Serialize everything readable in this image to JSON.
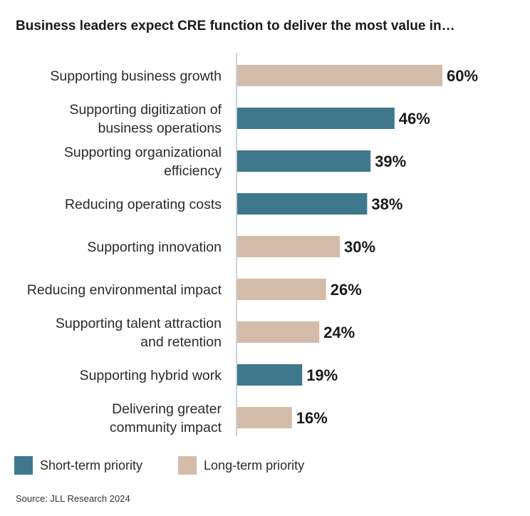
{
  "chart_data": {
    "type": "bar",
    "orientation": "horizontal",
    "title": "Business leaders expect CRE function to deliver the most value in…",
    "categories": [
      [
        "Supporting business growth"
      ],
      [
        "Supporting digitization of",
        "business operations"
      ],
      [
        "Supporting organizational",
        "efficiency"
      ],
      [
        "Reducing operating costs"
      ],
      [
        "Supporting innovation"
      ],
      [
        "Reducing environmental impact"
      ],
      [
        "Supporting talent attraction",
        "and retention"
      ],
      [
        "Supporting hybrid work"
      ],
      [
        "Delivering greater",
        "community impact"
      ]
    ],
    "values": [
      60,
      46,
      39,
      38,
      30,
      26,
      24,
      19,
      16
    ],
    "value_labels": [
      "60%",
      "46%",
      "39%",
      "38%",
      "30%",
      "26%",
      "24%",
      "19%",
      "16%"
    ],
    "groups": [
      "long",
      "short",
      "short",
      "short",
      "long",
      "long",
      "long",
      "short",
      "long"
    ],
    "xlim": [
      0,
      60
    ],
    "grid": false
  },
  "legend": {
    "short_label": "Short-term priority",
    "long_label": "Long-term priority"
  },
  "colors": {
    "short": "#3f788c",
    "long": "#d4bcab",
    "axis": "#b9c6cc"
  },
  "source": "Source: JLL Research 2024"
}
